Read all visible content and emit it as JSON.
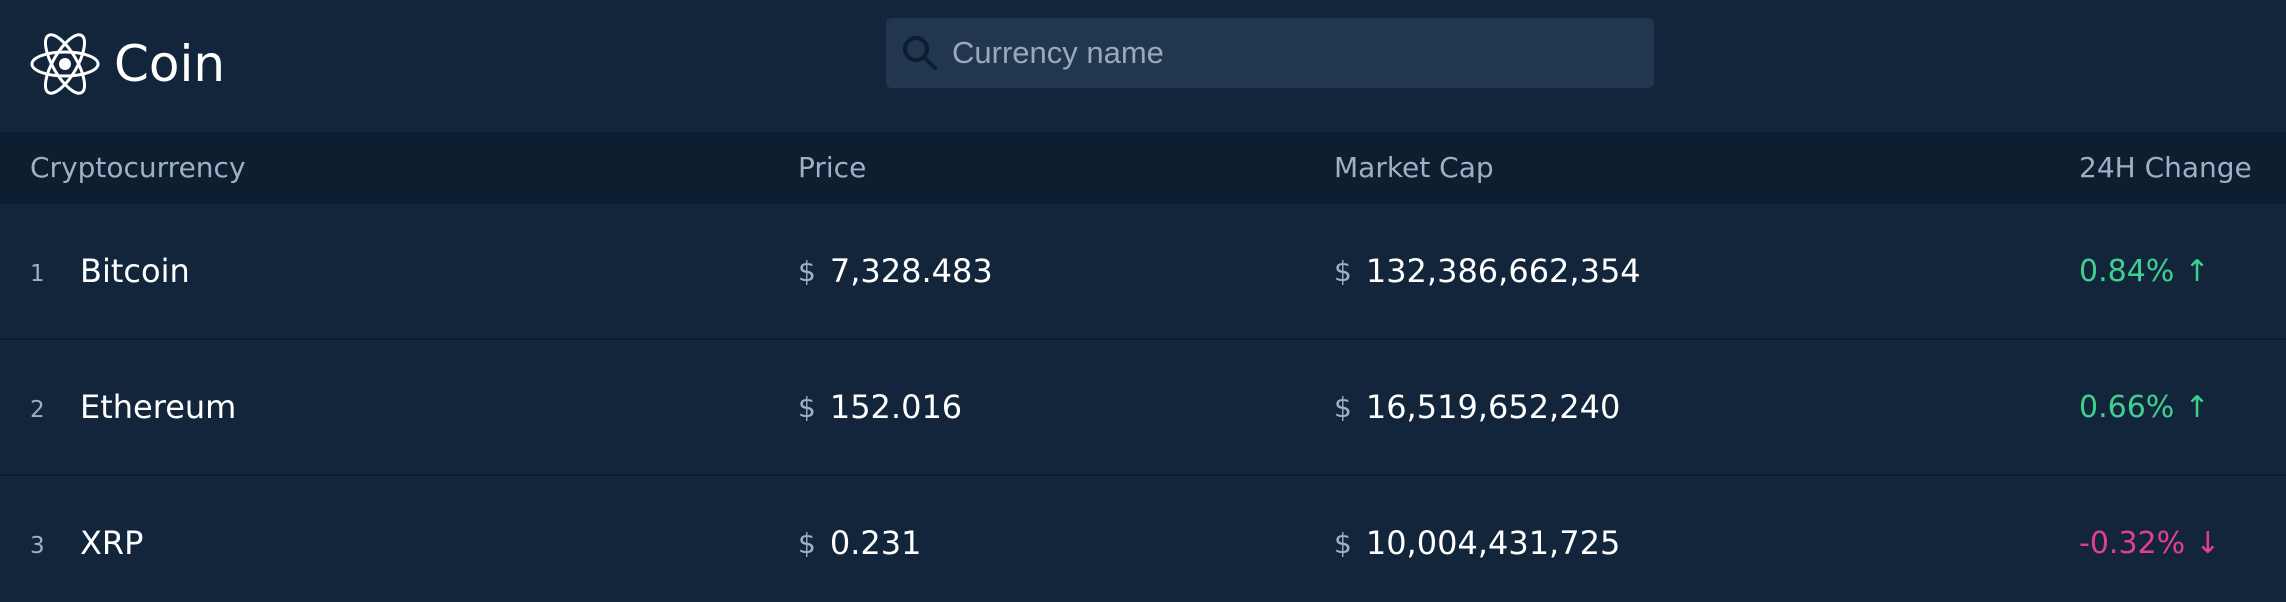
{
  "app": {
    "name": "Coin",
    "logo_icon": "atom-icon"
  },
  "search": {
    "placeholder": "Currency name",
    "value": "",
    "icon": "search-icon"
  },
  "table": {
    "columns": [
      "Cryptocurrency",
      "Price",
      "Market Cap",
      "24H Change"
    ],
    "rows": [
      {
        "rank": "1",
        "name": "Bitcoin",
        "price_currency": "$",
        "price": "7,328.483",
        "cap_currency": "$",
        "market_cap": "132,386,662,354",
        "change": "0.84%",
        "direction": "up",
        "arrow": "↑"
      },
      {
        "rank": "2",
        "name": "Ethereum",
        "price_currency": "$",
        "price": "152.016",
        "cap_currency": "$",
        "market_cap": "16,519,652,240",
        "change": "0.66%",
        "direction": "up",
        "arrow": "↑"
      },
      {
        "rank": "3",
        "name": "XRP",
        "price_currency": "$",
        "price": "0.231",
        "cap_currency": "$",
        "market_cap": "10,004,431,725",
        "change": "-0.32%",
        "direction": "down",
        "arrow": "↓"
      }
    ]
  },
  "colors": {
    "background": "#13253b",
    "header_row": "#0d1e31",
    "search_bg": "#213750",
    "positive": "#3fd08f",
    "negative": "#e0408f",
    "muted_text": "#9fb0c4"
  }
}
